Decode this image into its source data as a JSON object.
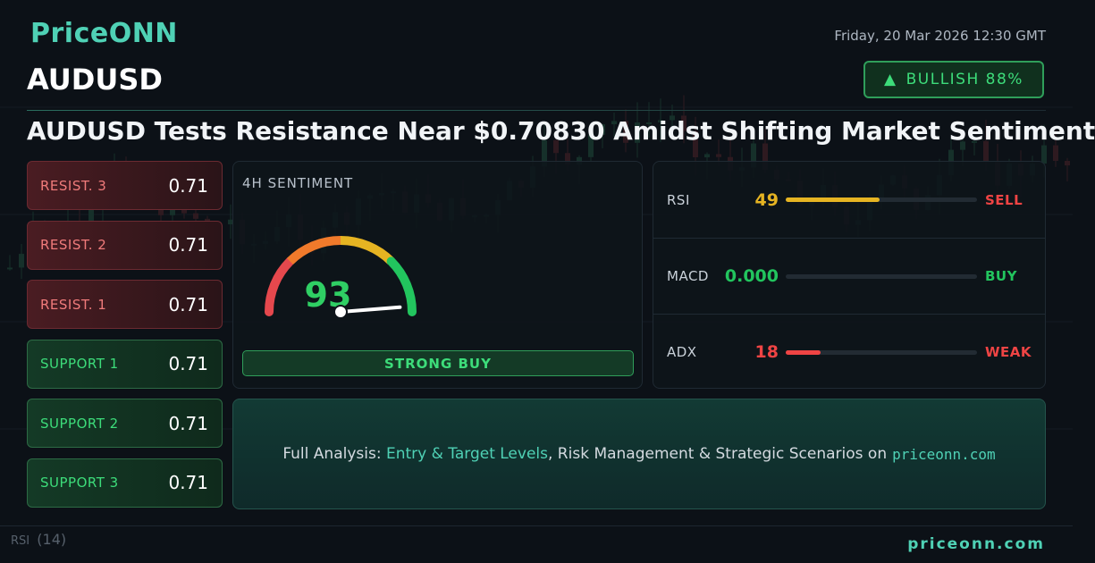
{
  "brand": {
    "logo": "PriceONN",
    "footer_url": "priceonn.com"
  },
  "datetime": "Friday, 20 Mar 2026 12:30 GMT",
  "symbol": "AUDUSD",
  "badge": {
    "icon": "up-triangle-icon",
    "label": "BULLISH 88%"
  },
  "headline": "AUDUSD Tests Resistance Near $0.70830 Amidst Shifting Market Sentiment",
  "levels": [
    {
      "label": "RESIST. 3",
      "value": "0.71",
      "kind": "resistance"
    },
    {
      "label": "RESIST. 2",
      "value": "0.71",
      "kind": "resistance"
    },
    {
      "label": "RESIST. 1",
      "value": "0.71",
      "kind": "resistance"
    },
    {
      "label": "SUPPORT 1",
      "value": "0.71",
      "kind": "support"
    },
    {
      "label": "SUPPORT 2",
      "value": "0.71",
      "kind": "support"
    },
    {
      "label": "SUPPORT 3",
      "value": "0.71",
      "kind": "support"
    }
  ],
  "sentiment": {
    "title": "4H SENTIMENT",
    "score": "93",
    "score_fraction": 0.93,
    "signal": "STRONG BUY"
  },
  "indicators": [
    {
      "name": "RSI",
      "value": "49",
      "fill_fraction": 0.49,
      "signal": "SELL",
      "value_color": "#e6b422",
      "bar_color": "#e6b422",
      "signal_color": "#ef4444"
    },
    {
      "name": "MACD",
      "value": "0.000",
      "fill_fraction": 0.0,
      "signal": "BUY",
      "value_color": "#22c55e",
      "bar_color": "#22c55e",
      "signal_color": "#22c55e"
    },
    {
      "name": "ADX",
      "value": "18",
      "fill_fraction": 0.18,
      "signal": "WEAK",
      "value_color": "#ef4444",
      "bar_color": "#ef4444",
      "signal_color": "#ef4444"
    }
  ],
  "cta": {
    "prefix": "Full Analysis: ",
    "highlight": "Entry & Target Levels",
    "middle": ", Risk Management & Strategic Scenarios on",
    "site": "priceonn.com"
  },
  "background": {
    "rsi_label": "RSI",
    "rsi_period": "(14)"
  },
  "colors": {
    "accent": "#4fd1b5",
    "bull": "#3ddc7a",
    "bear": "#f07b7b"
  }
}
